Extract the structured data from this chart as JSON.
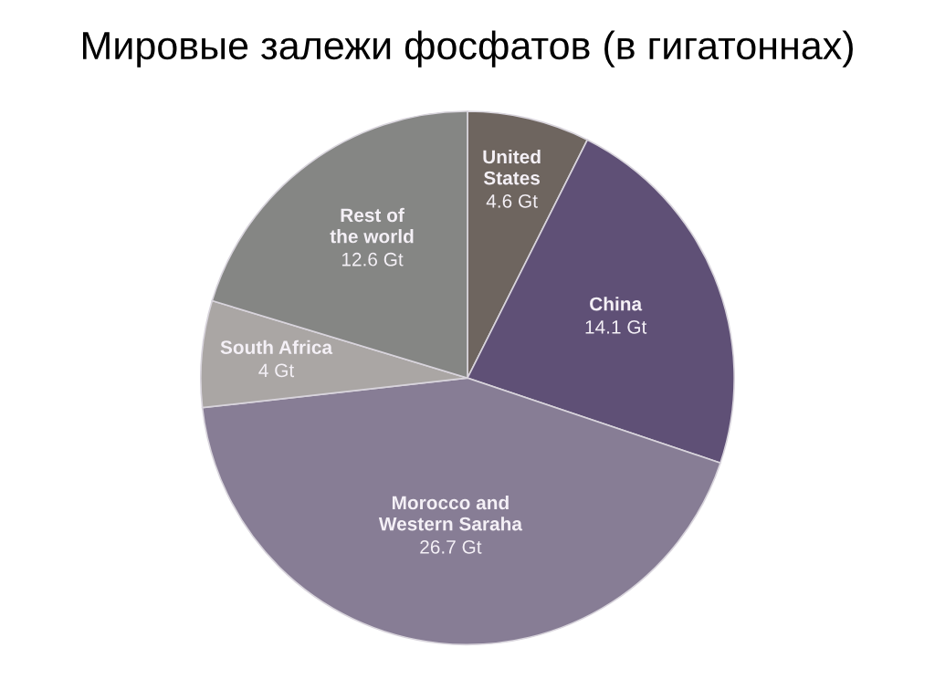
{
  "chart_data": {
    "type": "pie",
    "title": "Мировые залежи фосфатов (в гигатоннах)",
    "categories": [
      "United\nStates",
      "China",
      "Morocco and\nWestern Saraha",
      "South Africa",
      "Rest of\nthe world"
    ],
    "values": [
      4.6,
      14.1,
      26.7,
      4,
      12.6
    ],
    "value_labels": [
      "4.6 Gt",
      "14.1 Gt",
      "26.7 Gt",
      "4 Gt",
      "12.6 Gt"
    ],
    "colors": [
      "#6e655f",
      "#5f5076",
      "#877d95",
      "#aaa6a4",
      "#858684"
    ]
  }
}
